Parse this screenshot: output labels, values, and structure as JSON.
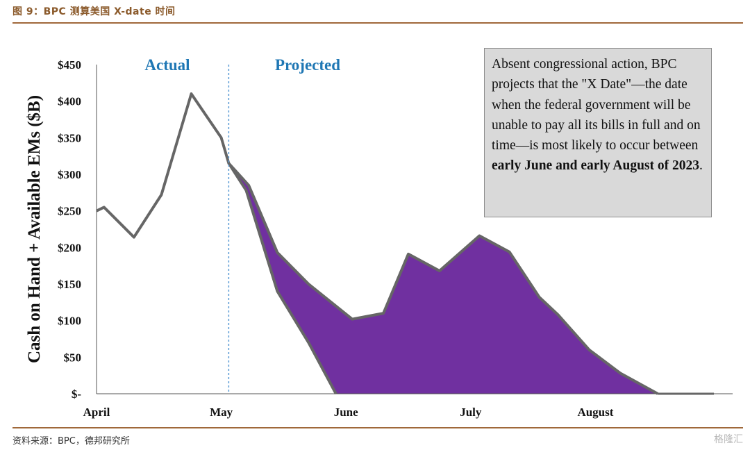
{
  "figure": {
    "title": "图 9：BPC 测算美国 X-date 时间",
    "source": "资料来源：BPC，德邦研究所",
    "watermark": "格隆汇"
  },
  "annotation": {
    "text_plain": "Absent congressional action, BPC projects that the \"X Date\"—the date when the federal government will be unable to pay all its bills in full and on time—is most likely to occur between ",
    "text_bold": "early June and early August of 2023",
    "text_end": "."
  },
  "chart_data": {
    "type": "area",
    "ylabel": "Cash on Hand + Available EMs ($B)",
    "x_ticks": [
      "April",
      "May",
      "June",
      "July",
      "August"
    ],
    "y_ticks": [
      "$-",
      "$50",
      "$100",
      "$150",
      "$200",
      "$250",
      "$300",
      "$350",
      "$400",
      "$450"
    ],
    "y_tick_values": [
      0,
      50,
      100,
      150,
      200,
      250,
      300,
      350,
      400,
      450
    ],
    "ylim": [
      0,
      450
    ],
    "xlim": [
      0,
      5.1
    ],
    "period_labels": {
      "actual": "Actual",
      "projected": "Projected"
    },
    "divider_x": 1.06,
    "colors": {
      "line": "#666666",
      "fill": "#7030a0",
      "divider": "#5b9bd5",
      "period_label": "#1f77b4"
    },
    "series": [
      {
        "role": "upper",
        "x": [
          0,
          0.06,
          0.3,
          0.52,
          0.76,
          1.0,
          1.06,
          1.22,
          1.45,
          1.7,
          2.05,
          2.3,
          2.5,
          2.75,
          3.07,
          3.31,
          3.55,
          3.7,
          3.95,
          4.2,
          4.5
        ],
        "values": [
          250,
          255,
          214,
          272,
          410,
          350,
          315,
          285,
          193,
          150,
          102,
          110,
          191,
          168,
          216,
          194,
          132,
          108,
          60,
          28,
          0
        ]
      },
      {
        "role": "lower",
        "x": [
          1.06,
          1.2,
          1.45,
          1.7,
          1.92
        ],
        "values": [
          315,
          278,
          140,
          70,
          0
        ]
      }
    ],
    "baseline_end_x": 4.95
  }
}
